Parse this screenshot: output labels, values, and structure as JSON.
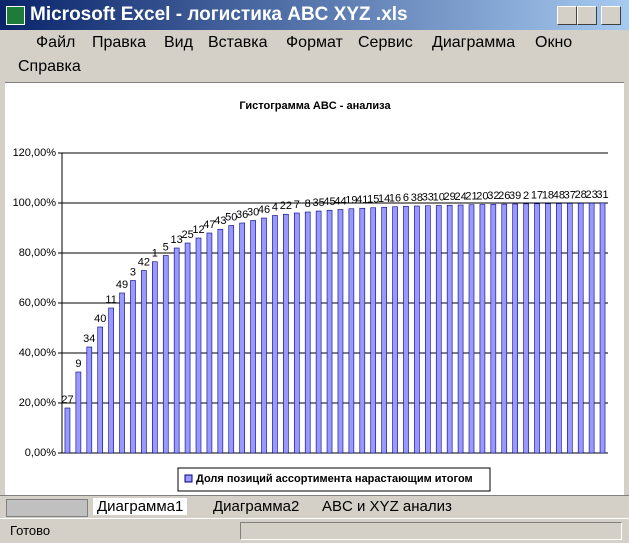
{
  "window": {
    "title": "Microsoft Excel - логистика ABC XYZ .xls",
    "menu": [
      "Файл",
      "Правка",
      "Вид",
      "Вставка",
      "Формат",
      "Сервис",
      "Диаграмма",
      "Окно",
      "Справка"
    ],
    "tabs": [
      "Диаграмма1",
      "Диаграмма2",
      "ABC и XYZ анализ"
    ],
    "status": "Готово"
  },
  "chart_data": {
    "type": "bar",
    "title": "Гистограмма ABC - анализа",
    "categories": [
      27,
      9,
      34,
      40,
      11,
      49,
      3,
      42,
      1,
      5,
      13,
      25,
      12,
      47,
      43,
      50,
      36,
      30,
      46,
      4,
      22,
      7,
      8,
      35,
      45,
      44,
      19,
      41,
      15,
      14,
      16,
      6,
      38,
      33,
      10,
      29,
      24,
      21,
      20,
      32,
      26,
      39,
      2,
      17,
      18,
      48,
      37,
      28,
      23,
      31
    ],
    "series": [
      {
        "name": "Доля позиций ассортимента нарастающим итогом",
        "color": "#9999ff",
        "values": [
          18,
          32.4,
          42.4,
          50.4,
          58,
          64,
          69,
          73,
          76.5,
          79,
          82,
          84,
          86,
          88,
          89.5,
          91,
          92,
          93,
          94,
          95,
          95.5,
          96,
          96.4,
          96.8,
          97.1,
          97.4,
          97.7,
          97.9,
          98.1,
          98.3,
          98.5,
          98.7,
          98.8,
          98.9,
          99,
          99.1,
          99.2,
          99.3,
          99.4,
          99.5,
          99.55,
          99.6,
          99.65,
          99.7,
          99.75,
          99.8,
          99.85,
          99.9,
          99.95,
          100
        ]
      }
    ],
    "ylim": [
      0,
      120
    ],
    "yticks": [
      {
        "value": 0,
        "label": "0,00%"
      },
      {
        "value": 20,
        "label": "20,00%"
      },
      {
        "value": 40,
        "label": "40,00%"
      },
      {
        "value": 60,
        "label": "60,00%"
      },
      {
        "value": 80,
        "label": "80,00%"
      },
      {
        "value": 100,
        "label": "100,00%"
      },
      {
        "value": 120,
        "label": "120,00%"
      }
    ],
    "grid": true,
    "legend": "bottom"
  }
}
